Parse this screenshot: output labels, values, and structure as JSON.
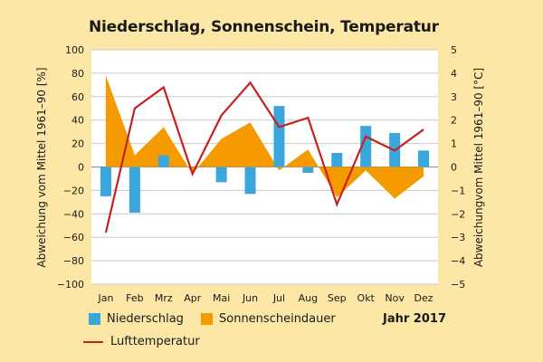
{
  "title": "Niederschlag, Sonnenschein, Temperatur",
  "year_label": "Jahr 2017",
  "colors": {
    "background": "#fde7a6",
    "plot_background": "#ffffff",
    "grid": "#c9c9c9",
    "precipitation": "#3aa6dc",
    "sunshine": "#f59b00",
    "temperature": "#c8201e"
  },
  "chart_data": {
    "type": "bar",
    "title": "Niederschlag, Sonnenschein, Temperatur",
    "categories": [
      "Jan",
      "Feb",
      "Mrz",
      "Apr",
      "Mai",
      "Jun",
      "Jul",
      "Aug",
      "Sep",
      "Okt",
      "Nov",
      "Dez"
    ],
    "ylabel_left": "Abweichung vom Mittel 1961–90 [%]",
    "ylabel_right": "Abweichungvom Mittel 1961–90 [°C]",
    "ylim_left": [
      -100,
      100
    ],
    "ylim_right": [
      -5,
      5
    ],
    "yticks_left": [
      -100,
      -80,
      -60,
      -40,
      -20,
      0,
      20,
      40,
      60,
      80,
      100
    ],
    "yticks_right": [
      -5,
      -4,
      -3,
      -2,
      -1,
      0,
      1,
      2,
      3,
      4,
      5
    ],
    "grid": true,
    "series": [
      {
        "name": "Niederschlag",
        "type": "bar",
        "axis": "left",
        "values": [
          -25,
          -39,
          10,
          0,
          -13,
          -23,
          52,
          -5,
          12,
          35,
          29,
          14
        ]
      },
      {
        "name": "Sonnenscheindauer",
        "type": "area",
        "axis": "left",
        "values": [
          78,
          10,
          34,
          -6,
          24,
          38,
          -3,
          15,
          -26,
          -3,
          -27,
          -8
        ]
      },
      {
        "name": "Lufttemperatur",
        "type": "line",
        "axis": "right",
        "values": [
          -2.8,
          2.5,
          3.4,
          -0.3,
          2.2,
          3.6,
          1.7,
          2.1,
          -1.6,
          1.3,
          0.7,
          1.6
        ]
      }
    ],
    "legend_position": "bottom"
  }
}
